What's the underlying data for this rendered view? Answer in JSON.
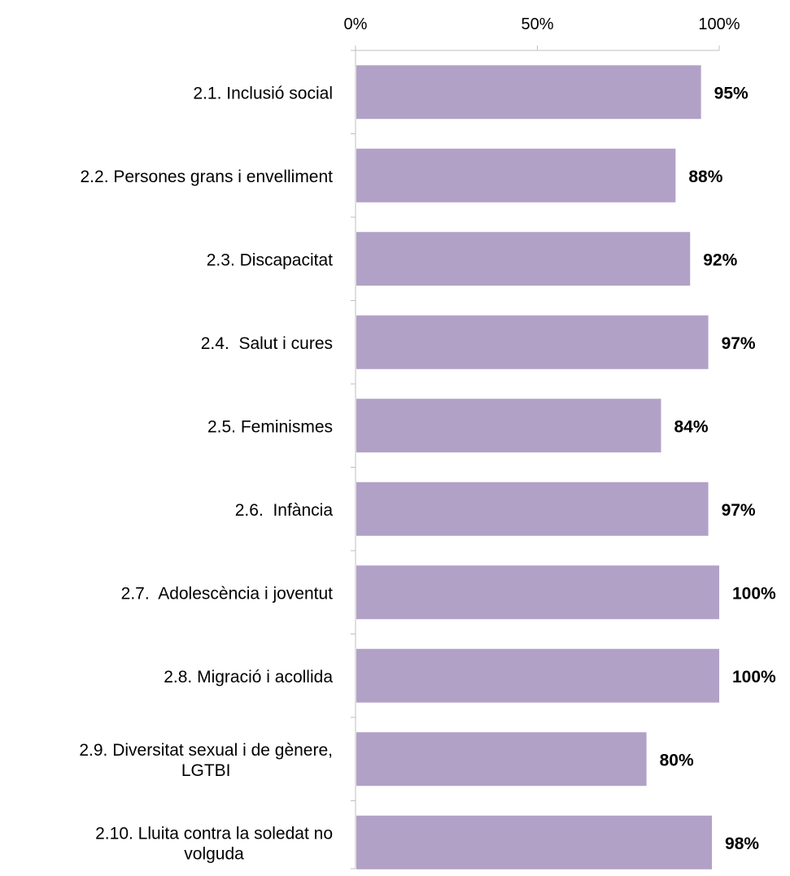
{
  "chart_data": {
    "type": "bar",
    "orientation": "horizontal",
    "categories": [
      [
        "2.1. Inclusió social"
      ],
      [
        "2.2. Persones grans i envelliment"
      ],
      [
        "2.3. Discapacitat"
      ],
      [
        "2.4.  Salut i cures"
      ],
      [
        "2.5. Feminismes"
      ],
      [
        "2.6.  Infància"
      ],
      [
        "2.7.  Adolescència i joventut"
      ],
      [
        "2.8. Migració i acollida"
      ],
      [
        "2.9. Diversitat sexual i de gènere,",
        "LGTBI"
      ],
      [
        "2.10. Lluita contra la soledat no",
        "volguda"
      ]
    ],
    "values": [
      95,
      88,
      92,
      97,
      84,
      97,
      100,
      100,
      80,
      98
    ],
    "value_labels": [
      "95%",
      "88%",
      "92%",
      "97%",
      "84%",
      "97%",
      "100%",
      "100%",
      "80%",
      "98%"
    ],
    "xlim": [
      0,
      100
    ],
    "x_ticks": [
      0,
      50,
      100
    ],
    "x_tick_labels": [
      "0%",
      "50%",
      "100%"
    ],
    "x_axis_position": "top",
    "grid": false,
    "bar_color": "#b2a1c7",
    "axis_color": "#bfbfbf"
  }
}
